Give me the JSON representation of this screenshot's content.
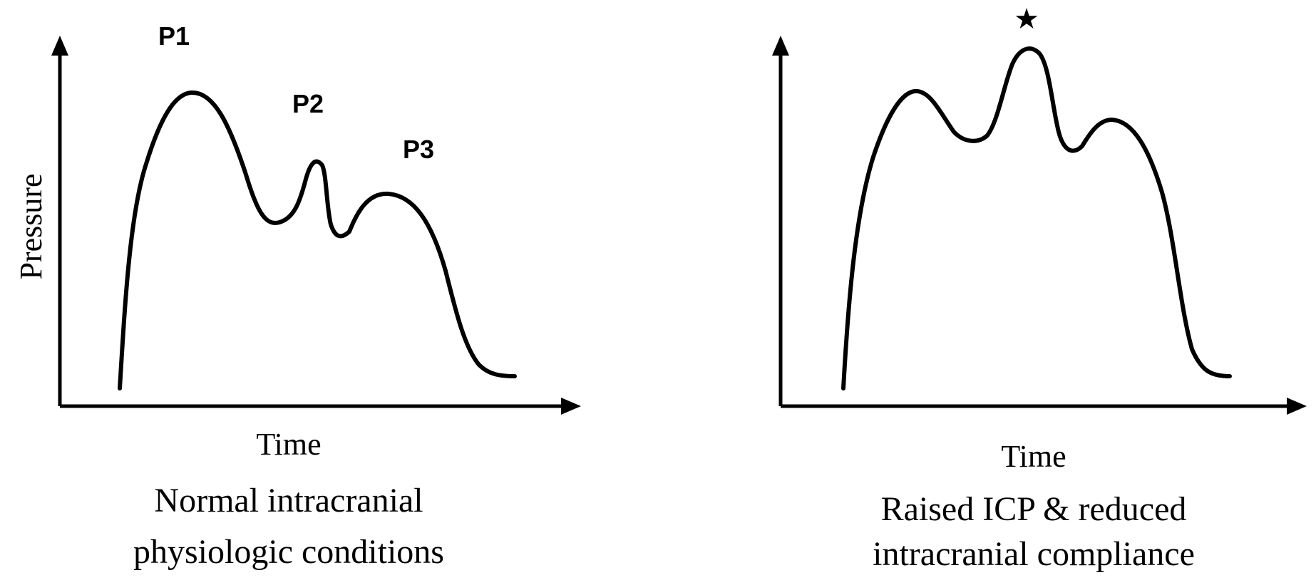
{
  "panels": [
    {
      "ylabel": "Pressure",
      "xlabel": "Time",
      "caption_line1": "Normal intracranial",
      "caption_line2": "physiologic conditions",
      "peak_labels": {
        "p1": "P1",
        "p2": "P2",
        "p3": "P3"
      }
    },
    {
      "xlabel": "Time",
      "caption_line1": "Raised ICP & reduced",
      "caption_line2": "intracranial compliance",
      "marker": "★"
    }
  ]
}
